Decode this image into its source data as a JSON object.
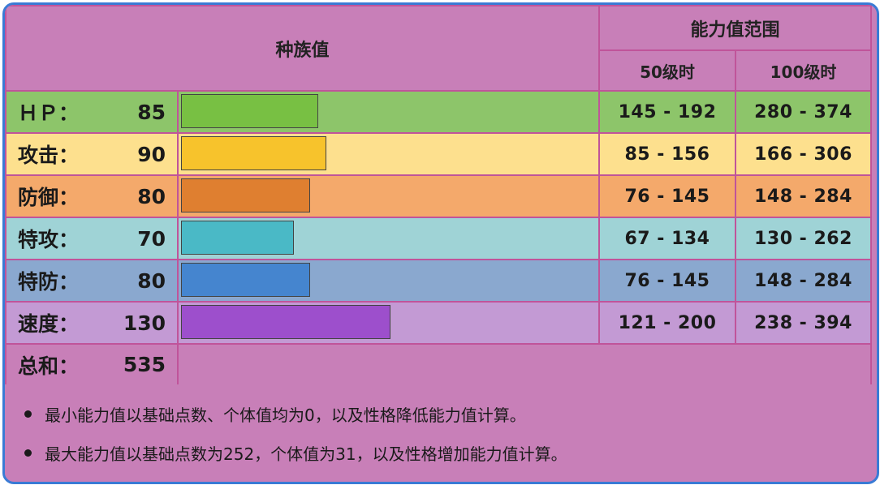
{
  "header": {
    "base_title": "种族值",
    "range_title": "能力值范围",
    "lv50": "50级时",
    "lv100": "100级时"
  },
  "stats": [
    {
      "label": "ＨＰ：",
      "value": "85",
      "base": 85,
      "lv50": "145 - 192",
      "lv100": "280 - 374",
      "row_color": "#8dc56a",
      "bar_color": "#78c043"
    },
    {
      "label": "攻击：",
      "value": "90",
      "base": 90,
      "lv50": "85 - 156",
      "lv100": "166 - 306",
      "row_color": "#fde08e",
      "bar_color": "#f7c32c"
    },
    {
      "label": "防御：",
      "value": "80",
      "base": 80,
      "lv50": "76 - 145",
      "lv100": "148 - 284",
      "row_color": "#f4a96b",
      "bar_color": "#df7f30"
    },
    {
      "label": "特攻：",
      "value": "70",
      "base": 70,
      "lv50": "67 - 134",
      "lv100": "130 - 262",
      "row_color": "#9fd3d6",
      "bar_color": "#4ab9c6"
    },
    {
      "label": "特防：",
      "value": "80",
      "base": 80,
      "lv50": "76 - 145",
      "lv100": "148 - 284",
      "row_color": "#8aa8cf",
      "bar_color": "#4585cf"
    },
    {
      "label": "速度：",
      "value": "130",
      "base": 130,
      "lv50": "121 - 200",
      "lv100": "238 - 394",
      "row_color": "#c39ad4",
      "bar_color": "#9d4fcc"
    }
  ],
  "total": {
    "label": "总和：",
    "value": "535"
  },
  "notes": [
    "最小能力值以基础点数、个体值均为0，以及性格降低能力值计算。",
    "最大能力值以基础点数为252，个体值为31，以及性格增加能力值计算。"
  ]
}
